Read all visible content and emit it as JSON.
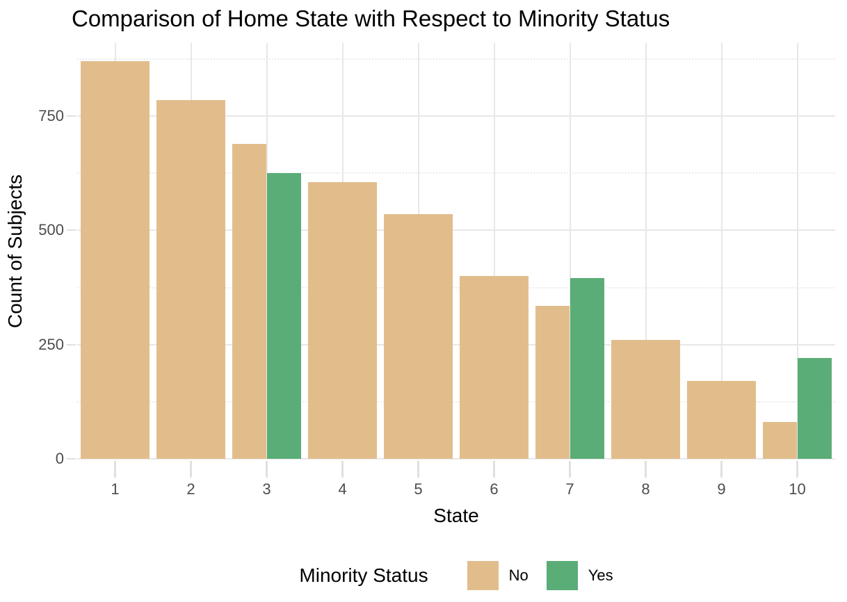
{
  "page": {
    "title": "Comparison of Home State with Respect to Minority Status"
  },
  "chart_data": {
    "type": "bar",
    "title": "Comparison of Home State with Respect to Minority Status",
    "xlabel": "State",
    "ylabel": "Count of Subjects",
    "categories": [
      "1",
      "2",
      "3",
      "4",
      "5",
      "6",
      "7",
      "8",
      "9",
      "10"
    ],
    "series": [
      {
        "name": "No",
        "color": "#E2BD8C",
        "values": [
          870,
          785,
          690,
          605,
          535,
          400,
          335,
          260,
          170,
          80
        ]
      },
      {
        "name": "Yes",
        "color": "#5AAD77",
        "values": [
          null,
          null,
          625,
          null,
          null,
          null,
          395,
          null,
          null,
          220
        ]
      }
    ],
    "ylim": [
      0,
      910
    ],
    "yticks_major": [
      0,
      250,
      500,
      750
    ],
    "ytick_labels": [
      "0",
      "250",
      "500",
      "750"
    ],
    "yticks_minor": [
      125,
      375,
      625,
      875
    ],
    "bar_group_width_ratio": 0.9,
    "grid": "major+minor, light gray on white",
    "legend_position": "bottom",
    "legend_title": "Minority Status"
  },
  "legend": {
    "title": "Minority Status",
    "items": [
      {
        "label": "No",
        "color": "#E2BD8C"
      },
      {
        "label": "Yes",
        "color": "#5AAD77"
      }
    ]
  },
  "style_colors": {
    "grid_major": "#E7E7E7",
    "grid_minor": "#ECECEC",
    "axis_tick": "#E0E0E0",
    "tick_label_text": "#4D4D4D",
    "title_text": "#000000",
    "background": "#FFFFFF"
  }
}
